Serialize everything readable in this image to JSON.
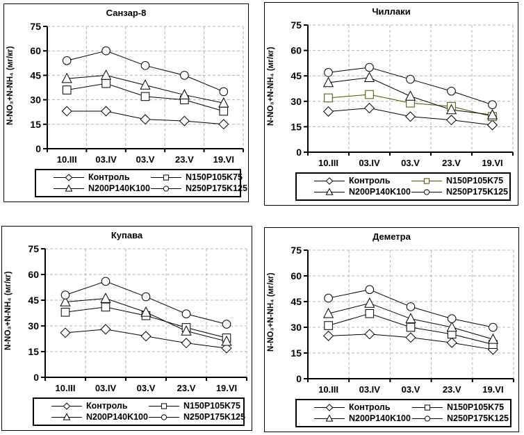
{
  "page": {
    "background": "#ffffff",
    "text_color": "#000000",
    "grid_color": "#b3b3b3",
    "axis_color": "#000000",
    "olive_series_color": "#4d4d00"
  },
  "chart_data": [
    {
      "type": "line",
      "title": "Санзар-8",
      "ylabel": "N-NO₃+N-NH₄ (мг/кг)",
      "categories": [
        "10.III",
        "03.IV",
        "03.V",
        "23.V",
        "19.VI"
      ],
      "ylim": [
        0,
        75
      ],
      "yticks": [
        0,
        15,
        30,
        45,
        60,
        75
      ],
      "grid": true,
      "legend_position": "bottom",
      "series": [
        {
          "name": "Контроль",
          "marker": "diamond",
          "color": "#000000",
          "values": [
            23,
            23,
            18,
            17,
            15
          ]
        },
        {
          "name": "N150P105K75",
          "marker": "square",
          "color": "#000000",
          "values": [
            36,
            40,
            32,
            30,
            23
          ]
        },
        {
          "name": "N200P140K100",
          "marker": "triangle",
          "color": "#000000",
          "values": [
            43,
            45,
            39,
            33,
            28
          ]
        },
        {
          "name": "N250P175K125",
          "marker": "circle",
          "color": "#000000",
          "values": [
            54,
            60,
            51,
            45,
            35
          ]
        }
      ]
    },
    {
      "type": "line",
      "title": "Чиллаки",
      "ylabel": "N-NO₃+N-NH₄ (мг/кг)",
      "categories": [
        "10.III",
        "03.IV",
        "03.V",
        "23.V",
        "19.VI"
      ],
      "ylim": [
        0,
        75
      ],
      "yticks": [
        0,
        15,
        30,
        45,
        60,
        75
      ],
      "grid": true,
      "legend_position": "bottom",
      "series": [
        {
          "name": "Контроль",
          "marker": "diamond",
          "color": "#000000",
          "values": [
            24,
            26,
            21,
            19,
            16
          ]
        },
        {
          "name": "N150P105K75",
          "marker": "square",
          "color": "#4d4d00",
          "values": [
            32,
            34,
            29,
            27,
            21
          ]
        },
        {
          "name": "N200P140K100",
          "marker": "triangle",
          "color": "#000000",
          "values": [
            41,
            44,
            33,
            25,
            22
          ]
        },
        {
          "name": "N250P175K125",
          "marker": "circle",
          "color": "#000000",
          "values": [
            47,
            50,
            43,
            36,
            28
          ]
        }
      ]
    },
    {
      "type": "line",
      "title": "Купава",
      "ylabel": "N-NO₃+N-NH₄ (мг/кг)",
      "categories": [
        "10.III",
        "03.IV",
        "03.V",
        "23.V",
        "19.VI"
      ],
      "ylim": [
        0,
        75
      ],
      "yticks": [
        0,
        15,
        30,
        45,
        60,
        75
      ],
      "grid": true,
      "legend_position": "bottom",
      "series": [
        {
          "name": "Контроль",
          "marker": "diamond",
          "color": "#000000",
          "values": [
            26,
            28,
            24,
            20,
            17
          ]
        },
        {
          "name": "N150P105K75",
          "marker": "square",
          "color": "#000000",
          "values": [
            38,
            41,
            36,
            29,
            23
          ]
        },
        {
          "name": "N200P140K100",
          "marker": "triangle",
          "color": "#000000",
          "values": [
            44,
            46,
            38,
            27,
            21
          ]
        },
        {
          "name": "N250P175K125",
          "marker": "circle",
          "color": "#000000",
          "values": [
            48,
            56,
            47,
            37,
            31
          ]
        }
      ]
    },
    {
      "type": "line",
      "title": "Деметра",
      "ylabel": "N-NO₃+N-NH₄ (мг/кг)",
      "categories": [
        "10.III",
        "03.IV",
        "03.V",
        "23.V",
        "19.VI"
      ],
      "ylim": [
        0,
        75
      ],
      "yticks": [
        0,
        15,
        30,
        45,
        60,
        75
      ],
      "grid": true,
      "legend_position": "bottom",
      "series": [
        {
          "name": "Контроль",
          "marker": "diamond",
          "color": "#000000",
          "values": [
            25,
            26,
            24,
            21,
            17
          ]
        },
        {
          "name": "N150P105K75",
          "marker": "square",
          "color": "#000000",
          "values": [
            31,
            38,
            30,
            26,
            20
          ]
        },
        {
          "name": "N200P140K100",
          "marker": "triangle",
          "color": "#000000",
          "values": [
            38,
            44,
            35,
            30,
            23
          ]
        },
        {
          "name": "N250P175K125",
          "marker": "circle",
          "color": "#000000",
          "values": [
            47,
            52,
            42,
            35,
            30
          ]
        }
      ]
    }
  ]
}
